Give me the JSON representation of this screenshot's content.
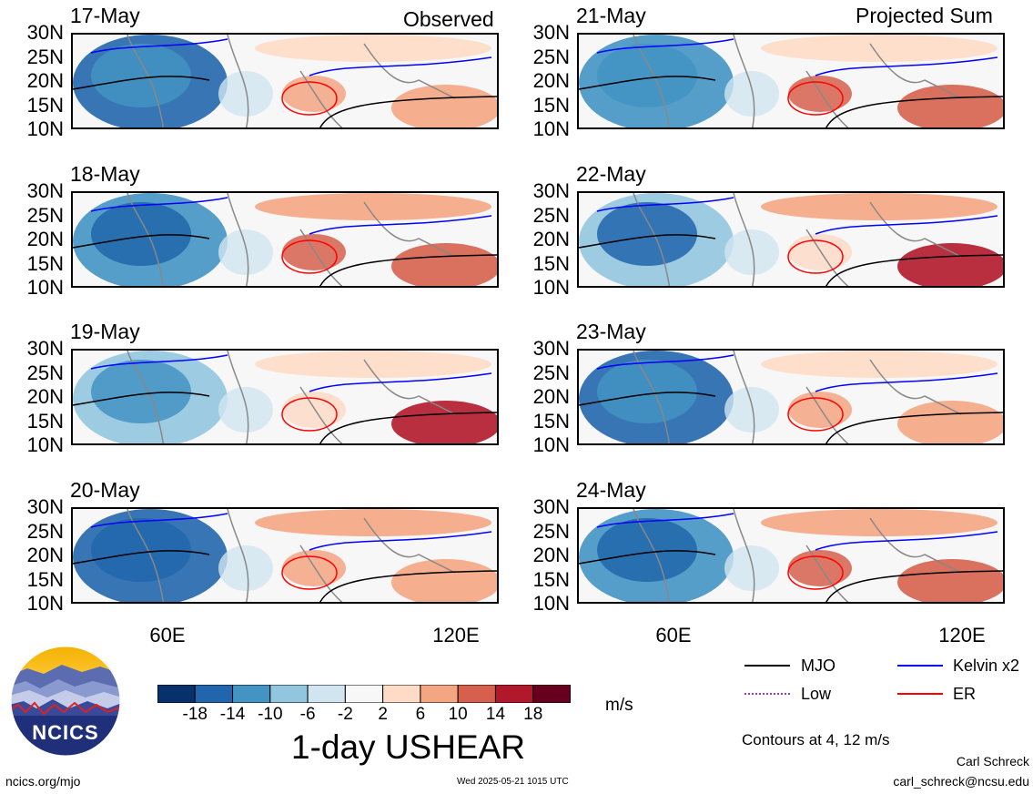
{
  "columns": {
    "left_title": "Observed",
    "right_title": "Projected Sum"
  },
  "panels_left": [
    {
      "date": "17-May"
    },
    {
      "date": "18-May"
    },
    {
      "date": "19-May"
    },
    {
      "date": "20-May"
    }
  ],
  "panels_right": [
    {
      "date": "21-May"
    },
    {
      "date": "22-May"
    },
    {
      "date": "23-May"
    },
    {
      "date": "24-May"
    }
  ],
  "lat_labels": [
    "30N",
    "25N",
    "20N",
    "15N",
    "10N"
  ],
  "lon_labels": [
    "60E",
    "120E"
  ],
  "colorbar": {
    "colors": [
      "#08306b",
      "#2166ac",
      "#4393c3",
      "#92c5de",
      "#d1e5f0",
      "#f7f7f7",
      "#fddbc7",
      "#f4a582",
      "#d6604d",
      "#b2182b",
      "#67001f"
    ],
    "tick_labels": [
      "-18",
      "-14",
      "-10",
      "-6",
      "-2",
      "2",
      "6",
      "10",
      "14",
      "18"
    ],
    "units": "m/s",
    "title": "1-day USHEAR"
  },
  "legend": {
    "items": [
      {
        "label": "MJO",
        "color": "#000000",
        "style": "solid"
      },
      {
        "label": "Kelvin x2",
        "color": "#0000ff",
        "style": "solid"
      },
      {
        "label": "Low",
        "color": "#9933cc",
        "style": "dotted"
      },
      {
        "label": "ER",
        "color": "#ff0000",
        "style": "solid"
      }
    ],
    "note": "Contours at 4, 12 m/s"
  },
  "logo": {
    "text": "NCICS"
  },
  "footer": {
    "url": "ncics.org/mjo",
    "timestamp": "Wed 2025-05-21 1015 UTC",
    "author": "Carl Schreck",
    "email": "carl_schreck@ncsu.edu"
  }
}
